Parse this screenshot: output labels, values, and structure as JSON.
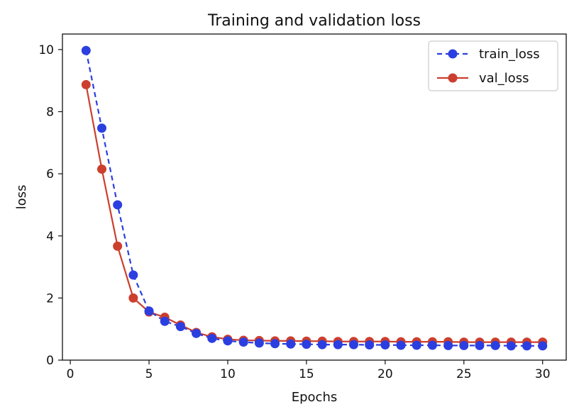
{
  "colors": {
    "train": "#2b3fe0",
    "val": "#cc3f2e",
    "axis": "#111111",
    "legend_border": "#cccccc"
  },
  "chart_data": {
    "type": "line",
    "title": "Training and validation loss",
    "xlabel": "Epochs",
    "ylabel": "loss",
    "xlim": [
      -0.5,
      31.5
    ],
    "ylim": [
      0,
      10.5
    ],
    "xticks": [
      0,
      5,
      10,
      15,
      20,
      25,
      30
    ],
    "yticks": [
      0,
      2,
      4,
      6,
      8,
      10
    ],
    "grid": false,
    "legend_position": "top-right",
    "x": [
      1,
      2,
      3,
      4,
      5,
      6,
      7,
      8,
      9,
      10,
      11,
      12,
      13,
      14,
      15,
      16,
      17,
      18,
      19,
      20,
      21,
      22,
      23,
      24,
      25,
      26,
      27,
      28,
      29,
      30
    ],
    "series": [
      {
        "name": "train_loss",
        "style": "dashed",
        "color": "#2b3fe0",
        "values": [
          9.97,
          7.47,
          5.0,
          2.74,
          1.58,
          1.25,
          1.08,
          0.86,
          0.7,
          0.62,
          0.58,
          0.55,
          0.53,
          0.52,
          0.51,
          0.5,
          0.5,
          0.5,
          0.49,
          0.49,
          0.48,
          0.48,
          0.48,
          0.47,
          0.47,
          0.47,
          0.47,
          0.46,
          0.46,
          0.46
        ]
      },
      {
        "name": "val_loss",
        "style": "solid",
        "color": "#cc3f2e",
        "values": [
          8.87,
          6.15,
          3.67,
          2.0,
          1.55,
          1.38,
          1.13,
          0.89,
          0.75,
          0.67,
          0.64,
          0.63,
          0.62,
          0.62,
          0.61,
          0.61,
          0.6,
          0.6,
          0.6,
          0.6,
          0.59,
          0.59,
          0.59,
          0.59,
          0.58,
          0.58,
          0.58,
          0.58,
          0.58,
          0.58
        ]
      }
    ]
  }
}
